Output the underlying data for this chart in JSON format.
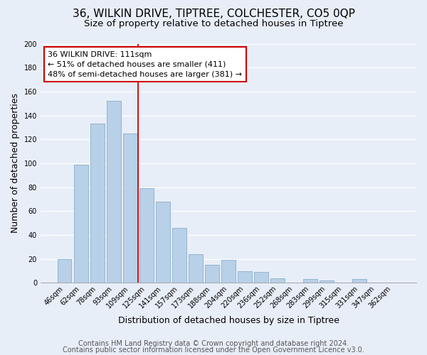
{
  "title": "36, WILKIN DRIVE, TIPTREE, COLCHESTER, CO5 0QP",
  "subtitle": "Size of property relative to detached houses in Tiptree",
  "xlabel": "Distribution of detached houses by size in Tiptree",
  "ylabel": "Number of detached properties",
  "bar_labels": [
    "46sqm",
    "62sqm",
    "78sqm",
    "93sqm",
    "109sqm",
    "125sqm",
    "141sqm",
    "157sqm",
    "173sqm",
    "188sqm",
    "204sqm",
    "220sqm",
    "236sqm",
    "252sqm",
    "268sqm",
    "283sqm",
    "299sqm",
    "315sqm",
    "331sqm",
    "347sqm",
    "362sqm"
  ],
  "bar_values": [
    20,
    99,
    133,
    152,
    125,
    79,
    68,
    46,
    24,
    15,
    19,
    10,
    9,
    4,
    0,
    3,
    2,
    0,
    3,
    0,
    0
  ],
  "bar_color": "#b8d0e8",
  "bar_edge_color": "#8aafc8",
  "vline_x_idx": 4,
  "vline_color": "#cc0000",
  "annotation_line1": "36 WILKIN DRIVE: 111sqm",
  "annotation_line2": "← 51% of detached houses are smaller (411)",
  "annotation_line3": "48% of semi-detached houses are larger (381) →",
  "annotation_box_color": "#ffffff",
  "annotation_box_edge": "#cc0000",
  "ylim": [
    0,
    200
  ],
  "yticks": [
    0,
    20,
    40,
    60,
    80,
    100,
    120,
    140,
    160,
    180,
    200
  ],
  "footer_line1": "Contains HM Land Registry data © Crown copyright and database right 2024.",
  "footer_line2": "Contains public sector information licensed under the Open Government Licence v3.0.",
  "bg_color": "#e8eef8",
  "plot_bg_color": "#e8eef8",
  "grid_color": "#ffffff",
  "title_fontsize": 11,
  "subtitle_fontsize": 9.5,
  "axis_label_fontsize": 9,
  "tick_fontsize": 7,
  "annotation_fontsize": 8,
  "footer_fontsize": 7
}
